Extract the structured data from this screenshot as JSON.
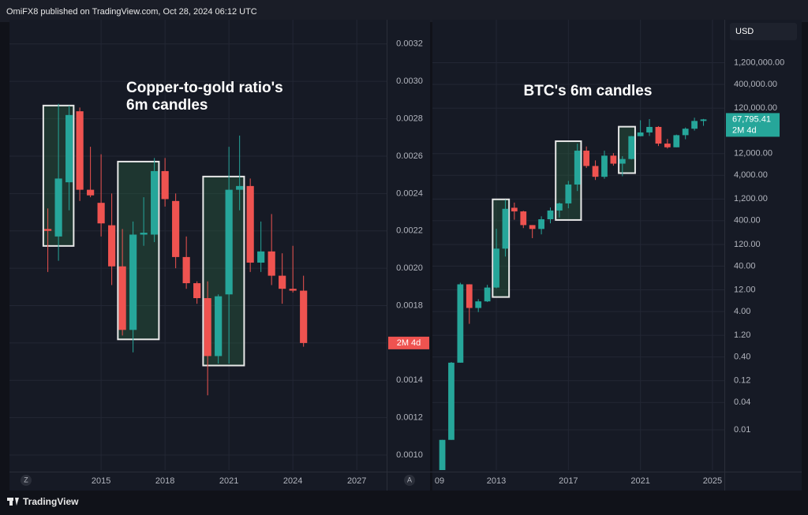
{
  "header": "OmiFX8 published on TradingView.com, Oct 28, 2024 06:12 UTC",
  "footer": "TradingView",
  "currency": "USD",
  "axis_buttons": [
    "Z",
    "A"
  ],
  "chart_data": [
    {
      "type": "candlestick",
      "title_lines": [
        "Copper-to-gold ratio's",
        "6m candles"
      ],
      "up_color": "#26a69a",
      "down_color": "#ef5350",
      "x": [
        2012.5,
        2013,
        2013.5,
        2014,
        2014.5,
        2015,
        2015.5,
        2016,
        2016.5,
        2017,
        2017.5,
        2018,
        2018.5,
        2019,
        2019.5,
        2020,
        2020.5,
        2021,
        2021.5,
        2022,
        2022.5,
        2023,
        2023.5,
        2024,
        2024.5
      ],
      "open": [
        0.00221,
        0.00217,
        0.00246,
        0.00284,
        0.00242,
        0.00235,
        0.00223,
        0.00201,
        0.00167,
        0.00218,
        0.00218,
        0.00252,
        0.00236,
        0.00206,
        0.00192,
        0.00184,
        0.00153,
        0.00186,
        0.00242,
        0.00244,
        0.00203,
        0.00209,
        0.00196,
        0.00189,
        0.00188
      ],
      "high": [
        0.00232,
        0.00288,
        0.00287,
        0.00286,
        0.00265,
        0.00261,
        0.0024,
        0.00221,
        0.00225,
        0.00238,
        0.00259,
        0.00259,
        0.0024,
        0.00217,
        0.00193,
        0.00193,
        0.00186,
        0.00265,
        0.00271,
        0.00248,
        0.00225,
        0.00229,
        0.00208,
        0.00212,
        0.00196
      ],
      "low": [
        0.00198,
        0.00204,
        0.00231,
        0.00236,
        0.00238,
        0.00217,
        0.00191,
        0.00164,
        0.00155,
        0.00212,
        0.00214,
        0.00233,
        0.002,
        0.00189,
        0.00181,
        0.00132,
        0.00149,
        0.00149,
        0.00231,
        0.00198,
        0.00198,
        0.00191,
        0.00181,
        0.00187,
        0.00158
      ],
      "close": [
        0.0022,
        0.00248,
        0.00282,
        0.00242,
        0.00239,
        0.00224,
        0.00201,
        0.00167,
        0.00218,
        0.00219,
        0.00252,
        0.00237,
        0.00206,
        0.00192,
        0.00184,
        0.00153,
        0.00185,
        0.00242,
        0.00244,
        0.00203,
        0.00209,
        0.00196,
        0.00189,
        0.00188,
        0.0016
      ],
      "countdown": "2M 4d",
      "xlim": [
        2010.7,
        2028.4
      ],
      "xticks": [
        2015,
        2018,
        2021,
        2024,
        2027
      ],
      "ylim": [
        0.00092,
        0.00333
      ],
      "yticks": [
        {
          "value": 0.001,
          "label": "0.0010"
        },
        0.0012,
        0.0014,
        0.0016,
        0.0018,
        {
          "value": 0.002,
          "label": "0.0020"
        },
        0.0022,
        0.0024,
        0.0026,
        0.0028,
        {
          "value": 0.003,
          "label": "0.0030"
        },
        0.0032
      ],
      "grid": true
    },
    {
      "type": "candlestick",
      "title": "BTC's 6m candles",
      "up_color": "#26a69a",
      "down_color": "#ef5350",
      "yscale": "log",
      "x": [
        2010,
        2010.5,
        2011,
        2011.5,
        2012,
        2012.5,
        2013,
        2013.5,
        2014,
        2014.5,
        2015,
        2015.5,
        2016,
        2016.5,
        2017,
        2017.5,
        2018,
        2018.5,
        2019,
        2019.5,
        2020,
        2020.5,
        2021,
        2021.5,
        2022,
        2022.5,
        2023,
        2023.5,
        2024,
        2024.5
      ],
      "open": [
        0.0013,
        0.006,
        0.3,
        15.9,
        4.8,
        6.7,
        13.5,
        97,
        770,
        640,
        320,
        263,
        430,
        670,
        960,
        2500,
        13900,
        6400,
        3700,
        10800,
        7200,
        9100,
        29000,
        35000,
        46300,
        19900,
        16500,
        30500,
        42300,
        62700
      ],
      "high": [
        0.006,
        0.31,
        17.2,
        16,
        7.5,
        15.5,
        266,
        1160,
        1000,
        660,
        320,
        500,
        780,
        1000,
        3000,
        19800,
        17200,
        8500,
        13900,
        12300,
        10500,
        29300,
        64900,
        69000,
        48200,
        25200,
        31400,
        45000,
        73800,
        69500
      ],
      "low": [
        0.0013,
        0.006,
        0.3,
        2.15,
        3.9,
        6.5,
        13,
        65,
        420,
        275,
        165,
        200,
        350,
        470,
        750,
        1800,
        5800,
        3150,
        3350,
        6500,
        3800,
        8900,
        28800,
        29300,
        17600,
        15500,
        16500,
        24800,
        38500,
        49000
      ],
      "close": [
        0.006,
        0.3,
        15.9,
        4.8,
        6.7,
        13.5,
        97,
        730,
        640,
        320,
        263,
        430,
        670,
        960,
        2500,
        13900,
        6400,
        3700,
        10800,
        7200,
        9100,
        29000,
        35000,
        46300,
        19900,
        16500,
        30500,
        42300,
        62700,
        67795.41
      ],
      "price_label": {
        "value": 67795.41,
        "label": "67,795.41"
      },
      "countdown": "2M 4d",
      "xlim": [
        2009.45,
        2025.66
      ],
      "xticks": [
        {
          "value": 2009,
          "label": "09"
        },
        2013,
        2017,
        2021,
        2025
      ],
      "ylim": [
        0.0013,
        10600000
      ],
      "yticks": [
        0.01,
        0.04,
        0.12,
        {
          "value": 0.4,
          "label": "0.40"
        },
        {
          "value": 1.2,
          "label": "1.20"
        },
        {
          "value": 4,
          "label": "4.00"
        },
        {
          "value": 12,
          "label": "12.00"
        },
        {
          "value": 40,
          "label": "40.00"
        },
        {
          "value": 120,
          "label": "120.00"
        },
        {
          "value": 400,
          "label": "400.00"
        },
        {
          "value": 1200,
          "label": "1,200.00"
        },
        {
          "value": 4000,
          "label": "4,000.00"
        },
        {
          "value": 12000,
          "label": "12,000.00"
        },
        {
          "value": 120000,
          "label": "120,000.00"
        },
        {
          "value": 400000,
          "label": "400,000.00"
        },
        {
          "value": 1200000,
          "label": "1,200,000.00"
        }
      ],
      "grid": true
    }
  ]
}
